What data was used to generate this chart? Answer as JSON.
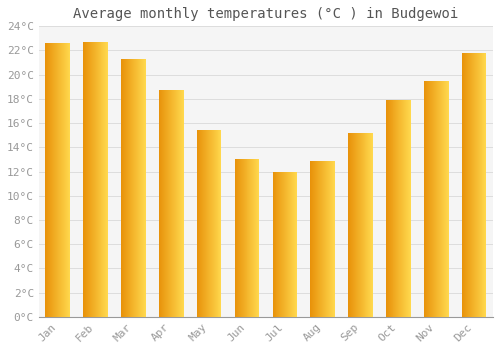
{
  "title": "Average monthly temperatures (°C ) in Budgewoi",
  "months": [
    "Jan",
    "Feb",
    "Mar",
    "Apr",
    "May",
    "Jun",
    "Jul",
    "Aug",
    "Sep",
    "Oct",
    "Nov",
    "Dec"
  ],
  "values": [
    22.6,
    22.7,
    21.3,
    18.7,
    15.4,
    13.0,
    12.0,
    12.9,
    15.2,
    17.9,
    19.5,
    21.8
  ],
  "bar_color_left": "#E8920A",
  "bar_color_right": "#FFD84D",
  "ylim": [
    0,
    24
  ],
  "ytick_step": 2,
  "background_color": "#FFFFFF",
  "plot_bg_color": "#F5F5F5",
  "grid_color": "#DDDDDD",
  "title_fontsize": 10,
  "tick_fontsize": 8,
  "font_family": "monospace",
  "tick_color": "#999999",
  "title_color": "#555555"
}
